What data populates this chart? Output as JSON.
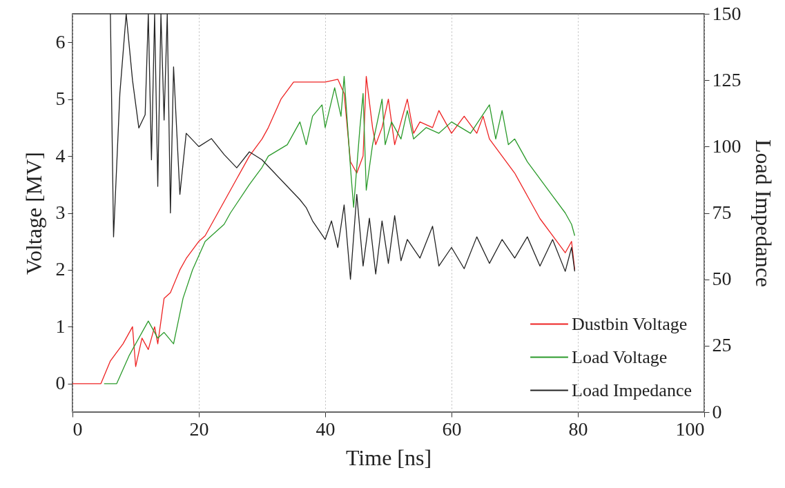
{
  "chart_data": {
    "type": "line",
    "xlabel": "Time [ns]",
    "ylabel": "Voltage [MV]",
    "y2label": "Load Impedance",
    "xlim": [
      0,
      100
    ],
    "xticks": [
      0,
      20,
      40,
      60,
      80,
      100
    ],
    "ylim": [
      -0.5,
      6.5
    ],
    "yticks": [
      0,
      1,
      2,
      3,
      4,
      5,
      6
    ],
    "y2lim": [
      0,
      150
    ],
    "y2ticks": [
      0,
      25,
      50,
      75,
      100,
      125,
      150
    ],
    "grid": "x",
    "legend": "bottom right",
    "series": [
      {
        "name": "Dustbin Voltage",
        "color": "#ee2222",
        "x": [
          0,
          4.5,
          6,
          8,
          9.5,
          10,
          11,
          12,
          13,
          13.5,
          14.5,
          15.5,
          17,
          18,
          20,
          21,
          23,
          24,
          26,
          28,
          30,
          31,
          33,
          35,
          37,
          40,
          42,
          43,
          44,
          45,
          46,
          46.5,
          47.5,
          48,
          49,
          50,
          51,
          52,
          53,
          54,
          55,
          57,
          58,
          60,
          62,
          64,
          65,
          66,
          68,
          70,
          72,
          74,
          76,
          78,
          79,
          79.5
        ],
        "values": [
          0,
          0,
          0.4,
          0.7,
          1.0,
          0.3,
          0.8,
          0.6,
          1.0,
          0.7,
          1.5,
          1.6,
          2.0,
          2.2,
          2.5,
          2.6,
          3.0,
          3.2,
          3.6,
          4.0,
          4.3,
          4.5,
          5.0,
          5.3,
          5.3,
          5.3,
          5.35,
          5.1,
          3.9,
          3.7,
          4.0,
          5.4,
          4.5,
          4.2,
          4.5,
          5.0,
          4.2,
          4.6,
          5.0,
          4.4,
          4.6,
          4.5,
          4.8,
          4.4,
          4.7,
          4.4,
          4.7,
          4.3,
          4.0,
          3.7,
          3.3,
          2.9,
          2.6,
          2.3,
          2.5,
          2.0
        ]
      },
      {
        "name": "Load Voltage",
        "color": "#2a9a2a",
        "x": [
          5,
          7,
          9,
          12,
          13.5,
          14.5,
          16,
          17.5,
          19,
          21,
          24,
          25,
          28,
          30,
          31,
          34,
          35,
          36,
          37,
          38,
          39.5,
          40,
          41.5,
          42.5,
          43,
          44,
          44.5,
          45.5,
          46,
          46.5,
          47.5,
          49,
          49.5,
          50.5,
          52,
          53,
          54,
          56,
          58,
          60,
          63,
          66,
          67,
          68,
          69,
          70,
          72,
          74,
          76,
          78,
          79,
          79.5
        ],
        "values": [
          0,
          0,
          0.5,
          1.1,
          0.8,
          0.9,
          0.7,
          1.5,
          2.0,
          2.5,
          2.8,
          3.0,
          3.5,
          3.8,
          4.0,
          4.2,
          4.4,
          4.6,
          4.2,
          4.7,
          4.9,
          4.5,
          5.2,
          4.7,
          5.4,
          3.8,
          3.1,
          4.5,
          5.1,
          3.4,
          4.2,
          5.0,
          4.2,
          4.6,
          4.3,
          4.8,
          4.3,
          4.5,
          4.4,
          4.6,
          4.4,
          4.9,
          4.3,
          4.8,
          4.2,
          4.3,
          3.9,
          3.6,
          3.3,
          3.0,
          2.8,
          2.6
        ]
      },
      {
        "name": "Load Impedance",
        "color": "#222222",
        "axis": "y2",
        "x": [
          6,
          6.5,
          7.5,
          8.5,
          9.5,
          10.5,
          11.5,
          12,
          12.5,
          13,
          13.5,
          14,
          14.5,
          15,
          15.5,
          16,
          17,
          18,
          20,
          22,
          24,
          26,
          28,
          30,
          32,
          34,
          36,
          37,
          38,
          40,
          41,
          42,
          43,
          44,
          45,
          46,
          47,
          48,
          49,
          50,
          51,
          52,
          53,
          55,
          57,
          58,
          60,
          62,
          64,
          66,
          68,
          70,
          72,
          74,
          76,
          78,
          79,
          79.5
        ],
        "values": [
          150,
          66,
          120,
          150,
          125,
          107,
          112,
          150,
          95,
          150,
          85,
          150,
          110,
          150,
          75,
          130,
          82,
          105,
          100,
          103,
          97,
          92,
          98,
          95,
          90,
          85,
          80,
          77,
          72,
          65,
          72,
          62,
          78,
          50,
          82,
          55,
          73,
          52,
          72,
          56,
          74,
          57,
          65,
          58,
          70,
          55,
          62,
          54,
          66,
          56,
          65,
          58,
          66,
          55,
          65,
          53,
          62,
          53
        ]
      }
    ]
  }
}
